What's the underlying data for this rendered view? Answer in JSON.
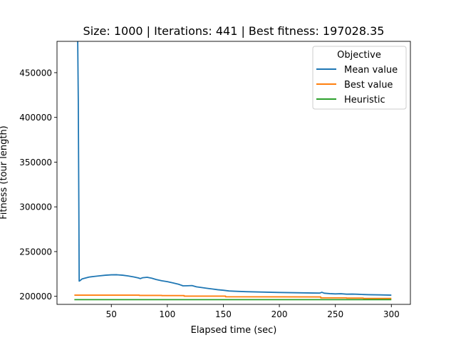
{
  "chart_data": {
    "type": "line",
    "title": "Size: 1000 | Iterations: 441 | Best fitness: 197028.35",
    "xlabel": "Elapsed time (sec)",
    "ylabel": "Fitness (tour length)",
    "xlim": [
      1.5,
      317
    ],
    "ylim": [
      191000,
      485000
    ],
    "xticks": [
      50,
      100,
      150,
      200,
      250,
      300
    ],
    "yticks": [
      200000,
      250000,
      300000,
      350000,
      400000,
      450000
    ],
    "xtick_labels": [
      "50",
      "100",
      "150",
      "200",
      "250",
      "300"
    ],
    "ytick_labels": [
      "200000",
      "250000",
      "300000",
      "350000",
      "400000",
      "450000"
    ],
    "grid": false,
    "legend": {
      "title": "Objective",
      "placement": "top-right"
    },
    "series": [
      {
        "name": "Mean value",
        "color": "#1f77b4",
        "points": [
          [
            20.0,
            485000
          ],
          [
            20.5,
            420000
          ],
          [
            21.0,
            300000
          ],
          [
            21.3,
            217000
          ],
          [
            22,
            217500
          ],
          [
            24,
            219500
          ],
          [
            27,
            220500
          ],
          [
            30,
            221500
          ],
          [
            35,
            222300
          ],
          [
            40,
            223000
          ],
          [
            45,
            223600
          ],
          [
            50,
            224000
          ],
          [
            55,
            224100
          ],
          [
            60,
            223600
          ],
          [
            65,
            222800
          ],
          [
            70,
            221700
          ],
          [
            74,
            220600
          ],
          [
            76,
            219800
          ],
          [
            78,
            220800
          ],
          [
            82,
            221300
          ],
          [
            86,
            220300
          ],
          [
            90,
            218800
          ],
          [
            95,
            217400
          ],
          [
            100,
            216400
          ],
          [
            105,
            215000
          ],
          [
            110,
            213500
          ],
          [
            114,
            211700
          ],
          [
            118,
            211800
          ],
          [
            122,
            212000
          ],
          [
            126,
            210600
          ],
          [
            130,
            209900
          ],
          [
            135,
            209000
          ],
          [
            140,
            208200
          ],
          [
            145,
            207400
          ],
          [
            150,
            206800
          ],
          [
            155,
            206000
          ],
          [
            160,
            205700
          ],
          [
            170,
            205200
          ],
          [
            180,
            204900
          ],
          [
            190,
            204600
          ],
          [
            200,
            204300
          ],
          [
            210,
            204100
          ],
          [
            220,
            203900
          ],
          [
            230,
            203700
          ],
          [
            236,
            203600
          ],
          [
            238,
            204500
          ],
          [
            240,
            203500
          ],
          [
            245,
            203000
          ],
          [
            250,
            202700
          ],
          [
            255,
            202900
          ],
          [
            260,
            202400
          ],
          [
            265,
            202500
          ],
          [
            270,
            202300
          ],
          [
            275,
            202000
          ],
          [
            280,
            201800
          ],
          [
            290,
            201600
          ],
          [
            300,
            201300
          ]
        ]
      },
      {
        "name": "Best value",
        "color": "#ff7f0e",
        "points": [
          [
            17,
            201300
          ],
          [
            75,
            201300
          ],
          [
            75,
            201000
          ],
          [
            95,
            201000
          ],
          [
            95,
            200800
          ],
          [
            115,
            200800
          ],
          [
            115,
            200200
          ],
          [
            152,
            200200
          ],
          [
            152,
            199500
          ],
          [
            200,
            199400
          ],
          [
            237,
            199300
          ],
          [
            237,
            198300
          ],
          [
            260,
            198300
          ],
          [
            260,
            198000
          ],
          [
            275,
            198000
          ],
          [
            275,
            197700
          ],
          [
            300,
            197700
          ]
        ]
      },
      {
        "name": "Heuristic",
        "color": "#2ca02c",
        "points": [
          [
            17,
            196300
          ],
          [
            300,
            196300
          ]
        ]
      }
    ]
  }
}
